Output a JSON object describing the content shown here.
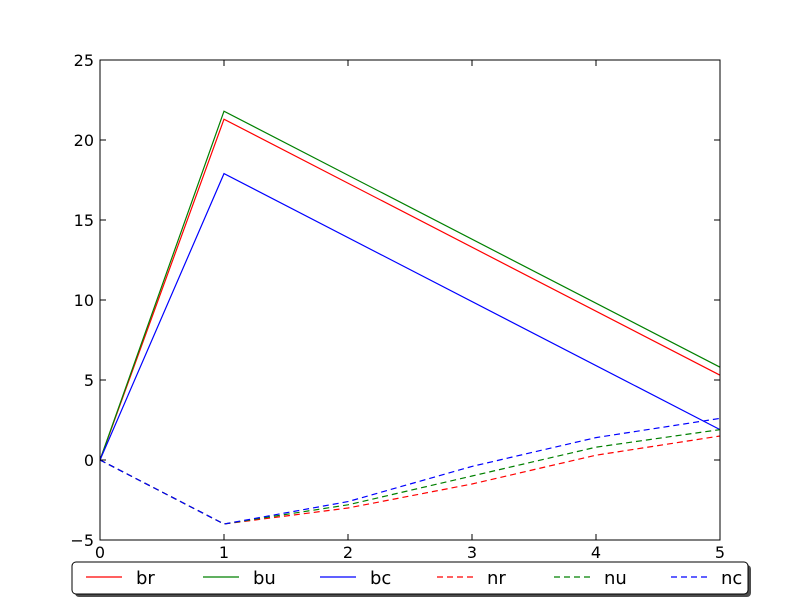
{
  "chart_data": {
    "type": "line",
    "title": "",
    "xlabel": "",
    "ylabel": "",
    "xlim": [
      0,
      5
    ],
    "ylim": [
      -5,
      25
    ],
    "x_ticks": [
      0,
      1,
      2,
      3,
      4,
      5
    ],
    "y_ticks": [
      -5,
      0,
      5,
      10,
      15,
      20,
      25
    ],
    "x_tick_labels": [
      "0",
      "1",
      "2",
      "3",
      "4",
      "5"
    ],
    "y_tick_labels": [
      "−5",
      "0",
      "5",
      "10",
      "15",
      "20",
      "25"
    ],
    "grid": false,
    "legend_position": "bottom",
    "series": [
      {
        "name": "br",
        "color": "#ff0000",
        "linestyle": "solid",
        "x": [
          0,
          1,
          5
        ],
        "y": [
          0,
          21.3,
          5.3
        ]
      },
      {
        "name": "bu",
        "color": "#008000",
        "linestyle": "solid",
        "x": [
          0,
          1,
          5
        ],
        "y": [
          0,
          21.8,
          5.8
        ]
      },
      {
        "name": "bc",
        "color": "#0000ff",
        "linestyle": "solid",
        "x": [
          0,
          1,
          5
        ],
        "y": [
          0,
          17.9,
          1.9
        ]
      },
      {
        "name": "nr",
        "color": "#ff0000",
        "linestyle": "dashed",
        "x": [
          0,
          1,
          2,
          3,
          4,
          5
        ],
        "y": [
          0,
          -4.0,
          -3.0,
          -1.5,
          0.3,
          1.5
        ]
      },
      {
        "name": "nu",
        "color": "#008000",
        "linestyle": "dashed",
        "x": [
          0,
          1,
          2,
          3,
          4,
          5
        ],
        "y": [
          0,
          -4.0,
          -2.8,
          -1.0,
          0.8,
          1.9
        ]
      },
      {
        "name": "nc",
        "color": "#0000ff",
        "linestyle": "dashed",
        "x": [
          0,
          1,
          2,
          3,
          4,
          5
        ],
        "y": [
          0,
          -4.0,
          -2.6,
          -0.4,
          1.4,
          2.6
        ]
      }
    ]
  }
}
